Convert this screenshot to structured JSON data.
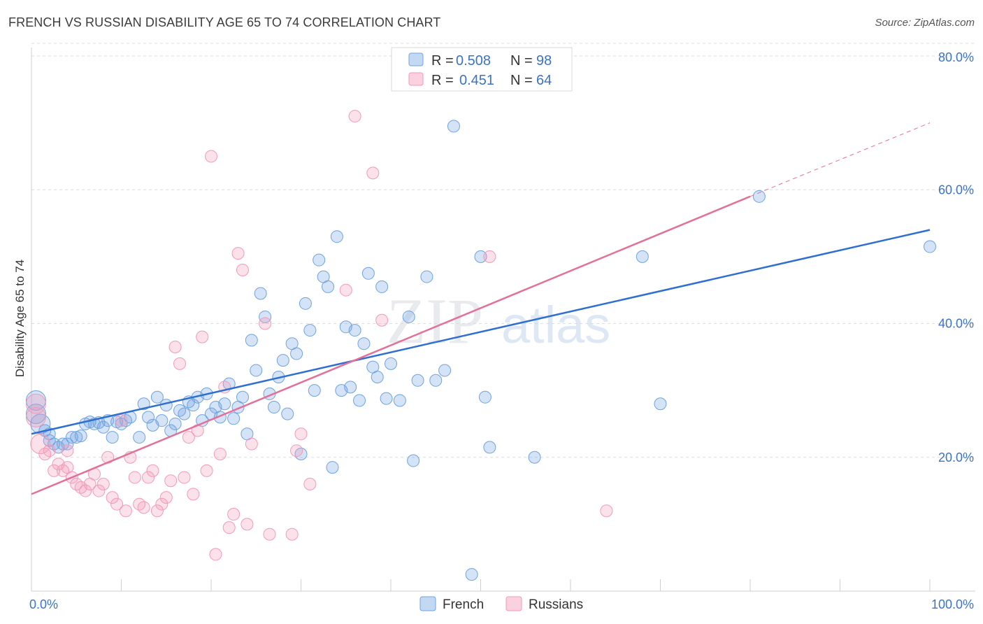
{
  "title": "FRENCH VS RUSSIAN DISABILITY AGE 65 TO 74 CORRELATION CHART",
  "source": "Source: ZipAtlas.com",
  "watermark": {
    "zip": "ZIP",
    "atlas": "atlas"
  },
  "colors": {
    "french": "#6fa3e0",
    "russians": "#f39ab8",
    "french_line": "#2f6fd1",
    "russians_line": "#e4709a",
    "tick": "#3b73c6"
  },
  "legend": {
    "rows": [
      {
        "r_label": "R =",
        "r_value": "0.508",
        "n_label": "N =",
        "n_value": "98"
      },
      {
        "r_label": "R =",
        "r_value": "0.451",
        "n_label": "N =",
        "n_value": "64"
      }
    ]
  },
  "bottom_legend": [
    "French",
    "Russians"
  ],
  "chart_data": {
    "type": "scatter",
    "title": "FRENCH VS RUSSIAN DISABILITY AGE 65 TO 74 CORRELATION CHART",
    "ylabel": "Disability Age 65 to 74",
    "xlabel": "",
    "xlim": [
      0,
      100
    ],
    "ylim": [
      0,
      82
    ],
    "x_ticks": [
      "0.0%",
      "100.0%"
    ],
    "y_ticks": [
      {
        "value": 20,
        "label": "20.0%"
      },
      {
        "value": 40,
        "label": "40.0%"
      },
      {
        "value": 60,
        "label": "60.0%"
      },
      {
        "value": 80,
        "label": "80.0%"
      }
    ],
    "grid": true,
    "legend_position": "top-center",
    "series": [
      {
        "name": "French",
        "R": 0.508,
        "N": 98,
        "trend": {
          "x0": 0,
          "y0": 23.5,
          "x1": 100,
          "y1": 54
        },
        "points": [
          [
            0.5,
            28.5
          ],
          [
            0.5,
            26.5
          ],
          [
            1,
            25
          ],
          [
            1.5,
            24
          ],
          [
            2,
            22.5
          ],
          [
            2.5,
            22
          ],
          [
            3,
            21.5
          ],
          [
            3.5,
            22
          ],
          [
            4,
            22
          ],
          [
            4.5,
            23
          ],
          [
            5,
            23
          ],
          [
            5.5,
            23.2
          ],
          [
            6,
            25
          ],
          [
            6.5,
            25.3
          ],
          [
            7,
            25
          ],
          [
            7.5,
            25.2
          ],
          [
            8,
            24.5
          ],
          [
            8.5,
            25.5
          ],
          [
            9,
            23
          ],
          [
            9.5,
            25.3
          ],
          [
            10,
            25
          ],
          [
            10.5,
            25.5
          ],
          [
            11,
            26
          ],
          [
            12,
            23
          ],
          [
            12.5,
            28
          ],
          [
            13,
            26
          ],
          [
            13.5,
            24.8
          ],
          [
            14,
            29
          ],
          [
            14.5,
            25.5
          ],
          [
            15,
            27.8
          ],
          [
            15.5,
            24
          ],
          [
            16,
            25
          ],
          [
            16.5,
            27
          ],
          [
            17,
            26.5
          ],
          [
            17.5,
            28.3
          ],
          [
            18,
            27.8
          ],
          [
            18.5,
            29
          ],
          [
            19,
            25.5
          ],
          [
            19.5,
            29.5
          ],
          [
            20,
            26.5
          ],
          [
            20.5,
            27.5
          ],
          [
            21,
            26
          ],
          [
            21.5,
            28
          ],
          [
            22,
            31
          ],
          [
            22.5,
            25.8
          ],
          [
            23,
            27.5
          ],
          [
            23.5,
            29
          ],
          [
            24,
            23.5
          ],
          [
            24.5,
            37.5
          ],
          [
            25,
            33
          ],
          [
            25.5,
            44.5
          ],
          [
            26,
            41
          ],
          [
            26.5,
            29.5
          ],
          [
            27,
            27.5
          ],
          [
            27.5,
            32
          ],
          [
            28,
            34.5
          ],
          [
            28.5,
            26.5
          ],
          [
            29,
            37
          ],
          [
            29.5,
            35.5
          ],
          [
            30,
            20.5
          ],
          [
            30.5,
            43
          ],
          [
            31,
            39
          ],
          [
            31.5,
            30
          ],
          [
            32,
            49.5
          ],
          [
            32.5,
            47
          ],
          [
            33,
            45.5
          ],
          [
            33.5,
            18.5
          ],
          [
            34,
            53
          ],
          [
            34.5,
            30
          ],
          [
            35,
            39.5
          ],
          [
            35.5,
            30.5
          ],
          [
            36,
            39
          ],
          [
            36.5,
            28.5
          ],
          [
            37,
            37
          ],
          [
            37.5,
            47.5
          ],
          [
            38,
            33.5
          ],
          [
            38.5,
            32
          ],
          [
            39,
            45.5
          ],
          [
            39.5,
            28.8
          ],
          [
            40,
            34
          ],
          [
            41,
            28.5
          ],
          [
            42,
            41
          ],
          [
            42.5,
            19.5
          ],
          [
            43,
            31.5
          ],
          [
            44,
            47
          ],
          [
            45,
            31.5
          ],
          [
            46,
            33
          ],
          [
            47,
            69.5
          ],
          [
            49,
            2.5
          ],
          [
            50,
            50
          ],
          [
            50.5,
            29
          ],
          [
            51,
            21.5
          ],
          [
            56,
            20
          ],
          [
            68,
            50
          ],
          [
            70,
            28
          ],
          [
            81,
            59
          ],
          [
            100,
            51.5
          ],
          [
            2,
            23.5
          ]
        ]
      },
      {
        "name": "Russians",
        "R": 0.451,
        "N": 64,
        "trend": {
          "x0": 0,
          "y0": 14.5,
          "x1": 80,
          "y1": 59
        },
        "trend_dashed_to": {
          "x": 100,
          "y": 70
        },
        "points": [
          [
            0.5,
            28
          ],
          [
            0.5,
            26
          ],
          [
            1,
            22
          ],
          [
            1.5,
            20.5
          ],
          [
            2,
            21
          ],
          [
            2.5,
            18
          ],
          [
            3,
            19
          ],
          [
            3.5,
            18
          ],
          [
            4,
            18.5
          ],
          [
            4.5,
            17
          ],
          [
            5,
            16
          ],
          [
            5.5,
            15.5
          ],
          [
            6,
            15
          ],
          [
            6.5,
            16
          ],
          [
            7,
            17.5
          ],
          [
            7.5,
            15
          ],
          [
            8,
            16
          ],
          [
            8.5,
            20
          ],
          [
            9,
            14
          ],
          [
            9.5,
            13
          ],
          [
            10,
            25.5
          ],
          [
            10.5,
            12
          ],
          [
            11,
            20
          ],
          [
            11.5,
            17
          ],
          [
            12,
            13
          ],
          [
            12.5,
            12.5
          ],
          [
            13,
            17
          ],
          [
            13.5,
            18
          ],
          [
            14,
            12
          ],
          [
            14.5,
            13
          ],
          [
            15,
            14
          ],
          [
            15.5,
            16.5
          ],
          [
            16,
            36.5
          ],
          [
            16.5,
            34
          ],
          [
            17,
            17
          ],
          [
            17.5,
            23
          ],
          [
            18,
            14.5
          ],
          [
            18.5,
            24
          ],
          [
            19,
            38
          ],
          [
            19.5,
            18
          ],
          [
            20,
            65
          ],
          [
            20.5,
            5.5
          ],
          [
            21,
            20.5
          ],
          [
            21.5,
            30.5
          ],
          [
            22,
            9.5
          ],
          [
            22.5,
            11.5
          ],
          [
            23,
            50.5
          ],
          [
            23.5,
            48
          ],
          [
            24,
            10
          ],
          [
            24.5,
            22
          ],
          [
            26,
            40
          ],
          [
            26.5,
            8.5
          ],
          [
            29,
            8.5
          ],
          [
            29.5,
            21
          ],
          [
            30,
            23.5
          ],
          [
            31,
            16
          ],
          [
            35,
            45
          ],
          [
            36,
            71
          ],
          [
            38,
            62.5
          ],
          [
            39,
            40.5
          ],
          [
            41,
            79.5
          ],
          [
            51,
            50
          ],
          [
            64,
            12
          ],
          [
            4,
            21
          ]
        ]
      }
    ]
  }
}
